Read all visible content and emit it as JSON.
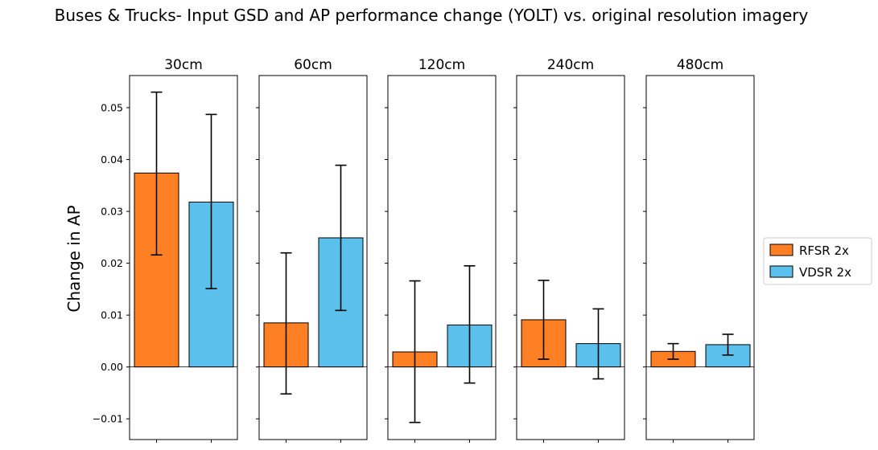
{
  "chart_data": {
    "type": "bar",
    "title": "Buses & Trucks- Input GSD and AP performance change (YOLT) vs. original resolution imagery",
    "ylabel": "Change in AP",
    "xlabel": "",
    "ylim": [
      -0.014,
      0.0562
    ],
    "yticks": [
      -0.01,
      0.0,
      0.01,
      0.02,
      0.03,
      0.04,
      0.05
    ],
    "ytick_labels": [
      "−0.01",
      "0.00",
      "0.01",
      "0.02",
      "0.03",
      "0.04",
      "0.05"
    ],
    "legend": {
      "position": "center-right",
      "entries": [
        "RFSR 2x",
        "VDSR 2x"
      ]
    },
    "series_colors": {
      "RFSR 2x": "#ff7f24",
      "VDSR 2x": "#5bc0eb"
    },
    "panels": [
      {
        "title": "30cm",
        "bars": [
          {
            "series": "RFSR 2x",
            "value": 0.0374,
            "err_low": 0.0216,
            "err_high": 0.053
          },
          {
            "series": "VDSR 2x",
            "value": 0.0318,
            "err_low": 0.0151,
            "err_high": 0.0487
          }
        ]
      },
      {
        "title": "60cm",
        "bars": [
          {
            "series": "RFSR 2x",
            "value": 0.0085,
            "err_low": -0.0052,
            "err_high": 0.022
          },
          {
            "series": "VDSR 2x",
            "value": 0.0249,
            "err_low": 0.0109,
            "err_high": 0.0389
          }
        ]
      },
      {
        "title": "120cm",
        "bars": [
          {
            "series": "RFSR 2x",
            "value": 0.0029,
            "err_low": -0.0107,
            "err_high": 0.0166
          },
          {
            "series": "VDSR 2x",
            "value": 0.0081,
            "err_low": -0.0031,
            "err_high": 0.0195
          }
        ]
      },
      {
        "title": "240cm",
        "bars": [
          {
            "series": "RFSR 2x",
            "value": 0.0091,
            "err_low": 0.0015,
            "err_high": 0.0167
          },
          {
            "series": "VDSR 2x",
            "value": 0.0045,
            "err_low": -0.0023,
            "err_high": 0.0112
          }
        ]
      },
      {
        "title": "480cm",
        "bars": [
          {
            "series": "RFSR 2x",
            "value": 0.003,
            "err_low": 0.0015,
            "err_high": 0.0045
          },
          {
            "series": "VDSR 2x",
            "value": 0.0043,
            "err_low": 0.0023,
            "err_high": 0.0063
          }
        ]
      }
    ]
  }
}
